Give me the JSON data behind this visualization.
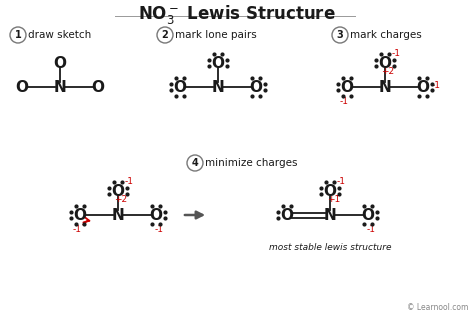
{
  "title_part1": "NO",
  "title_sub": "3",
  "title_sup": "−",
  "title_part2": " Lewis Structure",
  "bg_color": "#ffffff",
  "text_color": "#1a1a1a",
  "red_color": "#cc0000",
  "gray_color": "#888888",
  "footer": "© Learnool.com",
  "subtitle": "most stable lewis structure",
  "step1_label": "draw sketch",
  "step2_label": "mark lone pairs",
  "step3_label": "mark charges",
  "step4_label": "minimize charges"
}
